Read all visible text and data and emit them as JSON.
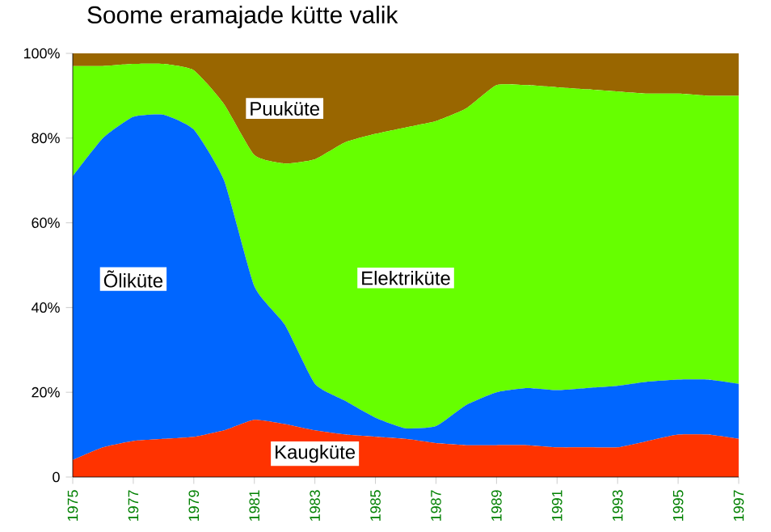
{
  "chart_data": {
    "type": "area",
    "title": "Soome eramajade kütte valik",
    "stacked": true,
    "x": [
      1975,
      1976,
      1977,
      1978,
      1979,
      1980,
      1981,
      1982,
      1983,
      1984,
      1985,
      1986,
      1987,
      1988,
      1989,
      1990,
      1991,
      1992,
      1993,
      1994,
      1995,
      1996,
      1997
    ],
    "xlim": [
      1975,
      1997
    ],
    "xticks": [
      1975,
      1977,
      1979,
      1981,
      1983,
      1985,
      1987,
      1989,
      1991,
      1993,
      1995,
      1997
    ],
    "ylim": [
      0,
      100
    ],
    "yticks": [
      {
        "value": 0,
        "label": "0"
      },
      {
        "value": 20,
        "label": "20%"
      },
      {
        "value": 40,
        "label": "40%"
      },
      {
        "value": 60,
        "label": "60%"
      },
      {
        "value": 80,
        "label": "80%"
      },
      {
        "value": 100,
        "label": "100%"
      }
    ],
    "grid": false,
    "series": [
      {
        "name": "Kaugküte",
        "color": "#ff3300",
        "values": [
          4,
          7,
          8.5,
          9,
          9.5,
          11,
          13.5,
          12.5,
          11,
          10,
          9.5,
          9,
          8,
          7.5,
          7.5,
          7.5,
          7,
          7,
          7,
          8.5,
          10,
          10,
          9
        ]
      },
      {
        "name": "Õliküte",
        "color": "#0066ff",
        "values": [
          67,
          73,
          76.5,
          76.5,
          72.5,
          59,
          31.5,
          23.5,
          11,
          8,
          4.5,
          2.5,
          4,
          9.5,
          12.5,
          13.5,
          13.5,
          14,
          14.5,
          14,
          13,
          13,
          13
        ]
      },
      {
        "name": "Elektriküte",
        "color": "#66ff00",
        "values": [
          26,
          17,
          12.5,
          12,
          14,
          18,
          31,
          38,
          53,
          61,
          67,
          71,
          72,
          70,
          72.5,
          71.5,
          71.5,
          70.5,
          69.5,
          68,
          67.5,
          67,
          68
        ]
      },
      {
        "name": "Puuküte",
        "color": "#996600",
        "values": [
          3,
          3,
          2.5,
          2.5,
          4,
          12,
          24,
          26,
          25,
          21,
          19,
          17.5,
          16,
          13,
          7.5,
          7.5,
          8,
          8.5,
          9,
          9.5,
          9.5,
          10,
          10
        ]
      }
    ]
  }
}
